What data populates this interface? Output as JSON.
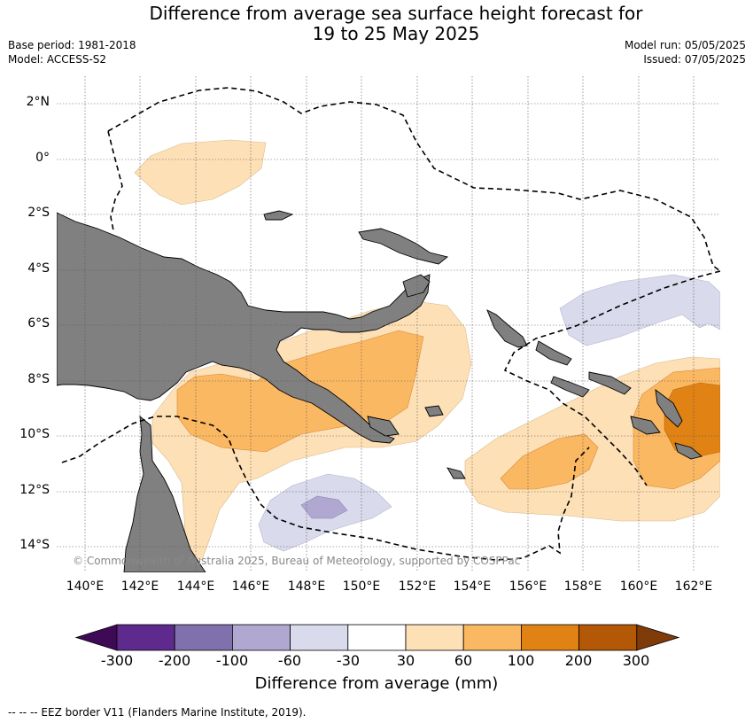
{
  "title_line1": "Difference from average sea surface height forecast for",
  "title_line2": "19 to 25 May 2025",
  "meta_left": [
    "Base period: 1981-2018",
    "Model: ACCESS-S2"
  ],
  "meta_right": [
    "Model run: 05/05/2025",
    "Issued: 07/05/2025"
  ],
  "lat_labels": [
    "2°N",
    "0°",
    "2°S",
    "4°S",
    "6°S",
    "8°S",
    "10°S",
    "12°S",
    "14°S"
  ],
  "lon_labels": [
    "140°E",
    "142°E",
    "144°E",
    "146°E",
    "148°E",
    "150°E",
    "152°E",
    "154°E",
    "156°E",
    "158°E",
    "160°E",
    "162°E"
  ],
  "colorbar": {
    "ticks": [
      "-300",
      "-200",
      "-100",
      "-60",
      "-30",
      "30",
      "60",
      "100",
      "200",
      "300"
    ],
    "colors": [
      "#3f0a55",
      "#5e2a8e",
      "#8071ac",
      "#b0a8d0",
      "#d9daeb",
      "#ffffff",
      "#fee0b6",
      "#fbb862",
      "#e08214",
      "#b35806",
      "#7f3b08"
    ],
    "title": "Difference from average (mm)"
  },
  "copyright": "© Commonwealth of Australia 2025, Bureau of Meteorology, supported by COSPPac",
  "footer": "--  --  -- EEZ border V11 (Flanders Marine Institute, 2019)."
}
